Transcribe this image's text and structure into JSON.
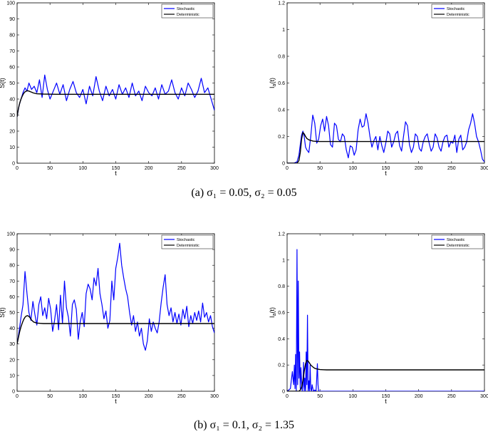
{
  "figure": {
    "caption_a": "(a) σ₁ = 0.05, σ₂ = 0.05",
    "caption_b": "(b) σ₁ = 0.1, σ₂ = 1.35"
  },
  "chart_data": [
    {
      "id": "a-left",
      "type": "line",
      "xlabel": "t",
      "ylabel": "S(t)",
      "xlim": [
        0,
        300
      ],
      "ylim": [
        0,
        100
      ],
      "xticks": [
        0,
        50,
        100,
        150,
        200,
        250,
        300
      ],
      "yticks": [
        0,
        10,
        20,
        30,
        40,
        50,
        60,
        70,
        80,
        90,
        100
      ],
      "legend": "top-right",
      "series": [
        {
          "name": "Stochastic",
          "color": "#0000ff",
          "x": [
            0,
            3,
            6,
            9,
            12,
            15,
            18,
            22,
            26,
            30,
            34,
            38,
            42,
            46,
            50,
            55,
            60,
            65,
            70,
            75,
            80,
            85,
            90,
            95,
            100,
            105,
            110,
            115,
            120,
            125,
            130,
            135,
            140,
            145,
            150,
            155,
            160,
            165,
            170,
            175,
            180,
            185,
            190,
            195,
            200,
            205,
            210,
            215,
            220,
            225,
            230,
            235,
            240,
            245,
            250,
            255,
            260,
            265,
            270,
            275,
            280,
            285,
            290,
            295,
            300
          ],
          "y": [
            29,
            36,
            40,
            44,
            47,
            45,
            50,
            46,
            48,
            44,
            52,
            41,
            55,
            46,
            40,
            45,
            50,
            43,
            49,
            39,
            46,
            51,
            44,
            41,
            46,
            37,
            48,
            42,
            54,
            45,
            39,
            48,
            42,
            46,
            40,
            49,
            43,
            47,
            41,
            50,
            42,
            45,
            39,
            48,
            44,
            42,
            47,
            40,
            49,
            43,
            45,
            52,
            44,
            40,
            47,
            42,
            50,
            46,
            41,
            45,
            53,
            44,
            47,
            40,
            33
          ]
        },
        {
          "name": "Deterministic",
          "color": "#000000",
          "x": [
            0,
            2,
            4,
            6,
            8,
            10,
            12,
            14,
            16,
            18,
            20,
            25,
            30,
            40,
            60,
            100,
            150,
            200,
            250,
            300
          ],
          "y": [
            29,
            34,
            37.5,
            40,
            42,
            43.5,
            44.5,
            45,
            45.2,
            45,
            44.6,
            43.8,
            43.3,
            43.1,
            43,
            43,
            43,
            43,
            43,
            43
          ]
        }
      ]
    },
    {
      "id": "a-right",
      "type": "line",
      "xlabel": "t",
      "ylabel": "I_a(t)",
      "xlim": [
        0,
        300
      ],
      "ylim": [
        0,
        1.2
      ],
      "xticks": [
        0,
        50,
        100,
        150,
        200,
        250,
        300
      ],
      "yticks": [
        0,
        0.2,
        0.4,
        0.6,
        0.8,
        1,
        1.2
      ],
      "legend": "top-right",
      "series": [
        {
          "name": "Stochastic",
          "color": "#0000ff",
          "x": [
            0,
            10,
            15,
            18,
            20,
            22,
            24,
            26,
            28,
            30,
            33,
            36,
            39,
            42,
            45,
            48,
            51,
            54,
            57,
            60,
            63,
            66,
            69,
            72,
            75,
            78,
            81,
            84,
            87,
            90,
            93,
            96,
            99,
            102,
            105,
            108,
            111,
            114,
            117,
            120,
            123,
            126,
            129,
            132,
            135,
            138,
            141,
            144,
            147,
            150,
            153,
            156,
            159,
            162,
            165,
            168,
            171,
            174,
            177,
            180,
            183,
            186,
            189,
            192,
            195,
            198,
            201,
            204,
            207,
            210,
            213,
            216,
            219,
            222,
            225,
            228,
            231,
            234,
            237,
            240,
            243,
            246,
            249,
            252,
            255,
            258,
            261,
            264,
            267,
            270,
            273,
            276,
            279,
            282,
            285,
            288,
            291,
            294,
            297,
            300
          ],
          "y": [
            0,
            0,
            0.01,
            0.06,
            0.14,
            0.21,
            0.24,
            0.2,
            0.12,
            0.1,
            0.08,
            0.2,
            0.36,
            0.3,
            0.15,
            0.18,
            0.28,
            0.33,
            0.24,
            0.35,
            0.28,
            0.14,
            0.12,
            0.3,
            0.28,
            0.18,
            0.16,
            0.22,
            0.2,
            0.1,
            0.04,
            0.13,
            0.12,
            0.06,
            0.1,
            0.25,
            0.33,
            0.27,
            0.28,
            0.37,
            0.3,
            0.2,
            0.12,
            0.17,
            0.2,
            0.1,
            0.2,
            0.13,
            0.08,
            0.15,
            0.24,
            0.22,
            0.12,
            0.16,
            0.22,
            0.24,
            0.13,
            0.09,
            0.2,
            0.31,
            0.28,
            0.14,
            0.08,
            0.12,
            0.22,
            0.2,
            0.11,
            0.09,
            0.16,
            0.2,
            0.22,
            0.15,
            0.09,
            0.12,
            0.22,
            0.19,
            0.12,
            0.09,
            0.16,
            0.2,
            0.21,
            0.12,
            0.16,
            0.15,
            0.21,
            0.08,
            0.18,
            0.21,
            0.1,
            0.12,
            0.16,
            0.25,
            0.3,
            0.37,
            0.3,
            0.2,
            0.16,
            0.1,
            0.03,
            0.01
          ]
        },
        {
          "name": "Deterministic",
          "color": "#000000",
          "x": [
            0,
            10,
            15,
            18,
            20,
            22,
            24,
            26,
            28,
            30,
            33,
            36,
            40,
            45,
            50,
            60,
            80,
            100,
            150,
            200,
            250,
            300
          ],
          "y": [
            0,
            0,
            0,
            0.02,
            0.08,
            0.18,
            0.23,
            0.22,
            0.2,
            0.185,
            0.175,
            0.17,
            0.165,
            0.163,
            0.162,
            0.162,
            0.162,
            0.162,
            0.162,
            0.162,
            0.162,
            0.162
          ]
        }
      ]
    },
    {
      "id": "b-left",
      "type": "line",
      "xlabel": "t",
      "ylabel": "S(t)",
      "xlim": [
        0,
        300
      ],
      "ylim": [
        0,
        100
      ],
      "xticks": [
        0,
        50,
        100,
        150,
        200,
        250,
        300
      ],
      "yticks": [
        0,
        10,
        20,
        30,
        40,
        50,
        60,
        70,
        80,
        90,
        100
      ],
      "legend": "top-right",
      "series": [
        {
          "name": "Stochastic",
          "color": "#0000ff",
          "x": [
            0,
            3,
            6,
            9,
            12,
            15,
            18,
            21,
            24,
            27,
            30,
            33,
            36,
            39,
            42,
            45,
            48,
            51,
            54,
            57,
            60,
            63,
            66,
            69,
            72,
            75,
            78,
            81,
            84,
            87,
            90,
            93,
            96,
            99,
            102,
            105,
            108,
            111,
            114,
            117,
            120,
            123,
            126,
            129,
            132,
            135,
            138,
            141,
            144,
            147,
            150,
            153,
            156,
            159,
            162,
            165,
            168,
            171,
            174,
            177,
            180,
            183,
            186,
            189,
            192,
            195,
            198,
            201,
            204,
            207,
            210,
            213,
            216,
            219,
            222,
            225,
            228,
            231,
            234,
            237,
            240,
            243,
            246,
            249,
            252,
            255,
            258,
            261,
            264,
            267,
            270,
            273,
            276,
            279,
            282,
            285,
            288,
            291,
            294,
            297,
            300
          ],
          "y": [
            30,
            38,
            47,
            55,
            76,
            62,
            50,
            45,
            57,
            49,
            42,
            55,
            60,
            48,
            53,
            46,
            59,
            52,
            38,
            45,
            55,
            39,
            61,
            43,
            70,
            53,
            47,
            35,
            55,
            58,
            52,
            33,
            44,
            50,
            41,
            62,
            68,
            65,
            58,
            72,
            67,
            78,
            62,
            55,
            46,
            51,
            40,
            45,
            70,
            58,
            78,
            85,
            94,
            80,
            72,
            65,
            60,
            50,
            42,
            48,
            38,
            44,
            35,
            40,
            30,
            26,
            32,
            46,
            38,
            44,
            40,
            37,
            44,
            56,
            66,
            74,
            55,
            48,
            53,
            44,
            50,
            43,
            49,
            42,
            52,
            46,
            54,
            41,
            48,
            43,
            50,
            45,
            51,
            44,
            56,
            47,
            50,
            44,
            48,
            41,
            37
          ]
        },
        {
          "name": "Deterministic",
          "color": "#000000",
          "x": [
            0,
            2,
            4,
            6,
            8,
            10,
            12,
            14,
            16,
            18,
            20,
            22,
            25,
            30,
            35,
            40,
            60,
            100,
            150,
            200,
            250,
            300
          ],
          "y": [
            30,
            34,
            38,
            41,
            43.5,
            45.5,
            47,
            47.8,
            48,
            47.5,
            46.5,
            45.2,
            44,
            43.3,
            43.1,
            43,
            43,
            43,
            43,
            43,
            43,
            43
          ]
        }
      ]
    },
    {
      "id": "b-right",
      "type": "line",
      "xlabel": "t",
      "ylabel": "I_a(t)",
      "xlim": [
        0,
        300
      ],
      "ylim": [
        0,
        1.2
      ],
      "xticks": [
        0,
        50,
        100,
        150,
        200,
        250,
        300
      ],
      "yticks": [
        0,
        0.2,
        0.4,
        0.6,
        0.8,
        1,
        1.2
      ],
      "legend": "top-right",
      "series": [
        {
          "name": "Stochastic",
          "color": "#0000ff",
          "x": [
            0,
            5,
            8,
            10,
            11,
            12,
            13,
            14,
            15,
            16,
            17,
            18,
            19,
            20,
            21,
            22,
            23,
            24,
            25,
            26,
            27,
            28,
            29,
            30,
            31,
            32,
            33,
            34,
            35,
            36,
            37,
            38,
            40,
            42,
            44,
            45,
            46,
            47,
            48,
            50,
            60,
            100,
            150,
            200,
            250,
            300
          ],
          "y": [
            0,
            0.02,
            0.15,
            0.05,
            0.2,
            0.02,
            0.28,
            0.0,
            1.08,
            0.05,
            0.84,
            0.1,
            0.3,
            0.02,
            0.18,
            0.08,
            0.0,
            0.05,
            0.22,
            0.0,
            0.1,
            0.0,
            0.3,
            0.05,
            0.58,
            0.0,
            0.08,
            0.0,
            0.2,
            0.02,
            0.0,
            0.05,
            0.0,
            0.01,
            0.0,
            0.1,
            0.21,
            0.05,
            0.0,
            0.0,
            0.0,
            0.0,
            0.0,
            0.0,
            0.0,
            0.0
          ]
        },
        {
          "name": "Deterministic",
          "color": "#000000",
          "x": [
            0,
            10,
            15,
            18,
            20,
            22,
            24,
            26,
            28,
            30,
            32,
            34,
            36,
            38,
            40,
            42,
            45,
            48,
            50,
            55,
            60,
            100,
            150,
            200,
            250,
            300
          ],
          "y": [
            0,
            0,
            0,
            0.0,
            0.01,
            0.03,
            0.08,
            0.15,
            0.21,
            0.235,
            0.23,
            0.215,
            0.2,
            0.19,
            0.182,
            0.175,
            0.17,
            0.167,
            0.165,
            0.164,
            0.163,
            0.163,
            0.163,
            0.163,
            0.163,
            0.163
          ]
        }
      ]
    }
  ]
}
